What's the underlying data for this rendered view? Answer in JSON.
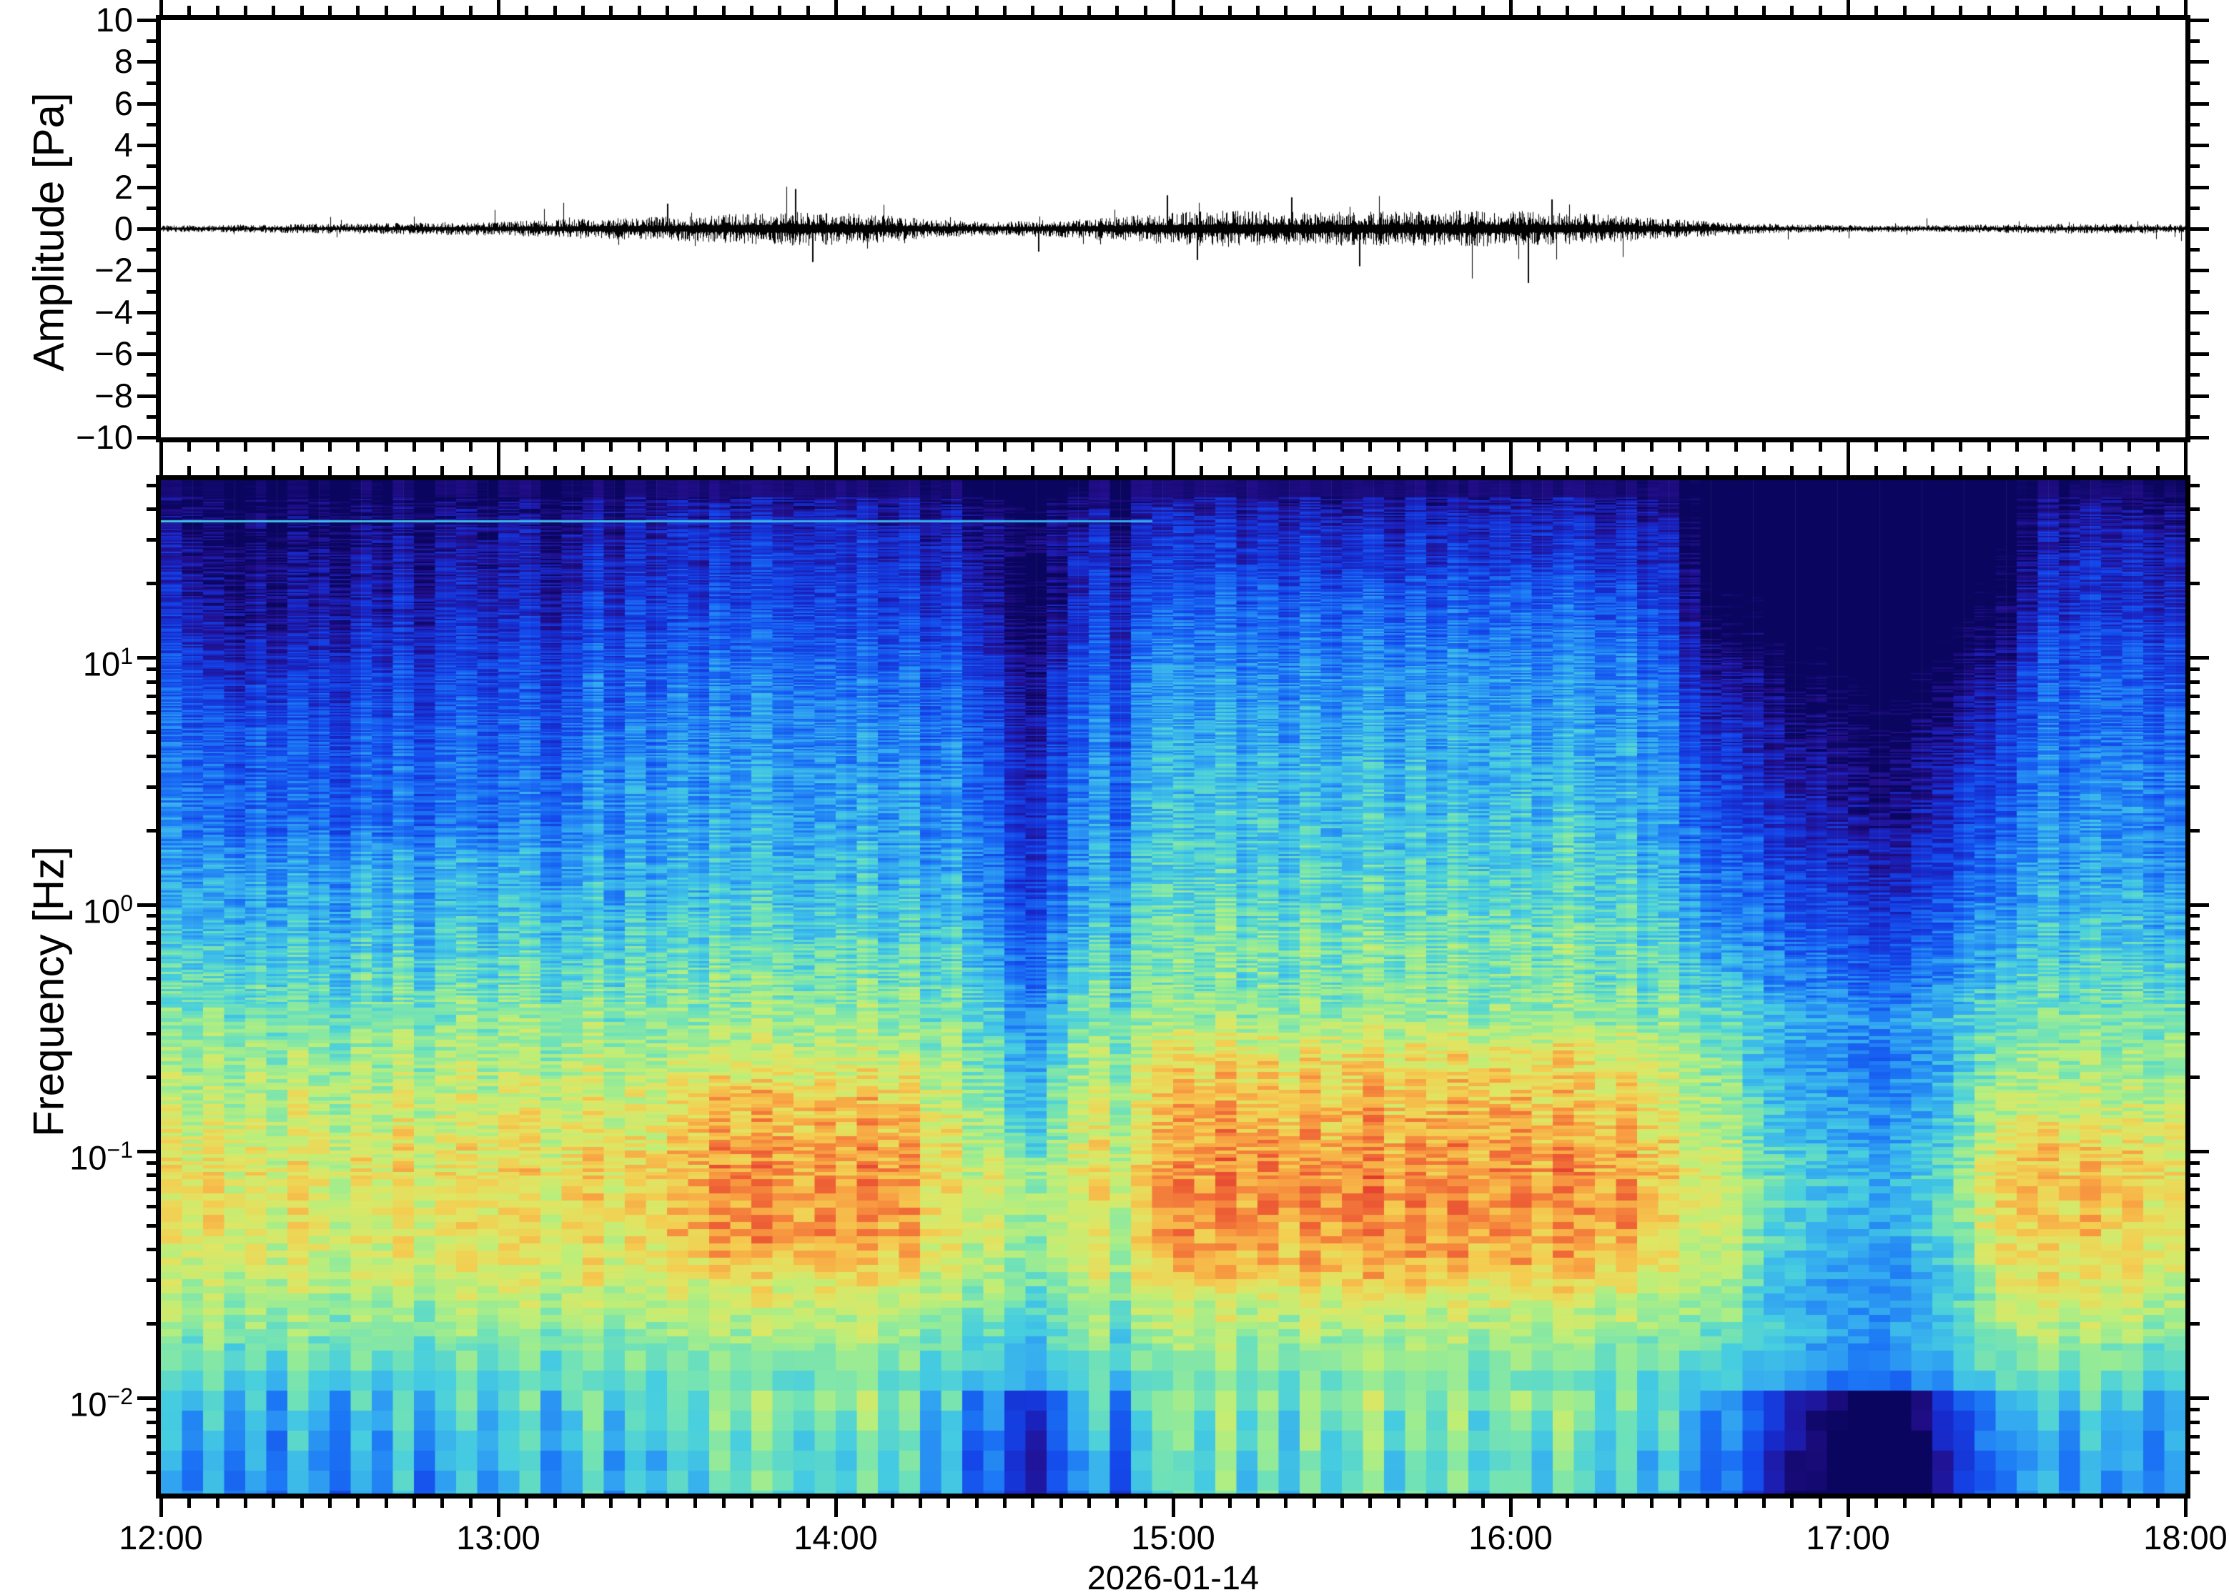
{
  "labels": {
    "amplitude_axis": "Amplitude [Pa]",
    "frequency_axis": "Frequency [Hz]",
    "date": "2026-01-14"
  },
  "chart_data": [
    {
      "type": "line",
      "title": "infrasound pressure waveform",
      "ylabel": "Amplitude [Pa]",
      "ylim": [
        -10,
        10
      ],
      "y_tick_step": 2,
      "y_minor_step": 1,
      "y_tick_labels": [
        "10",
        "8",
        "6",
        "4",
        "2",
        "0",
        "−2",
        "−4",
        "−6",
        "−8",
        "−10"
      ],
      "x_start": "12:00",
      "x_end": "18:00",
      "x_tick_labels": [
        "12:00",
        "13:00",
        "14:00",
        "15:00",
        "16:00",
        "17:00",
        "18:00"
      ],
      "x_minor_per_hour": 12,
      "line_color": "#000000",
      "envelope_pa": [
        [
          0.0,
          0.1
        ],
        [
          0.25,
          0.12
        ],
        [
          0.5,
          0.15
        ],
        [
          0.75,
          0.18
        ],
        [
          1.0,
          0.22
        ],
        [
          1.25,
          0.3
        ],
        [
          1.5,
          0.36
        ],
        [
          1.7,
          0.45
        ],
        [
          1.85,
          0.52
        ],
        [
          2.0,
          0.5
        ],
        [
          2.15,
          0.4
        ],
        [
          2.3,
          0.26
        ],
        [
          2.5,
          0.22
        ],
        [
          2.7,
          0.28
        ],
        [
          2.85,
          0.38
        ],
        [
          3.0,
          0.48
        ],
        [
          3.15,
          0.55
        ],
        [
          3.4,
          0.5
        ],
        [
          3.6,
          0.52
        ],
        [
          3.85,
          0.55
        ],
        [
          4.1,
          0.5
        ],
        [
          4.3,
          0.42
        ],
        [
          4.5,
          0.28
        ],
        [
          4.7,
          0.16
        ],
        [
          4.9,
          0.12
        ],
        [
          5.1,
          0.1
        ],
        [
          5.3,
          0.11
        ],
        [
          5.5,
          0.14
        ],
        [
          5.75,
          0.15
        ],
        [
          6.0,
          0.13
        ]
      ],
      "spikes_pa": [
        [
          1.5,
          1.2
        ],
        [
          1.88,
          1.9
        ],
        [
          1.93,
          -1.6
        ],
        [
          2.6,
          -1.1
        ],
        [
          2.98,
          1.6
        ],
        [
          3.07,
          -1.5
        ],
        [
          3.35,
          1.5
        ],
        [
          3.55,
          -1.8
        ],
        [
          4.05,
          -2.6
        ],
        [
          4.12,
          1.4
        ]
      ]
    },
    {
      "type": "heatmap",
      "title": "infrasound spectrogram",
      "ylabel": "Frequency [Hz]",
      "xlabel": "2026-01-14",
      "y_scale": "log",
      "f_min_hz": 0.0041,
      "f_max_hz": 52.3,
      "y_tick_exponents": [
        "1",
        "0",
        "−1",
        "−2"
      ],
      "y_minor_ticks_hz": [
        50,
        40,
        30,
        20,
        9,
        8,
        7,
        6,
        5,
        4,
        3,
        2,
        0.9,
        0.8,
        0.7,
        0.6,
        0.5,
        0.4,
        0.3,
        0.2,
        0.09,
        0.08,
        0.07,
        0.06,
        0.05,
        0.04,
        0.03,
        0.02,
        0.009,
        0.008,
        0.007,
        0.006,
        0.005
      ],
      "x_tick_labels": [
        "12:00",
        "13:00",
        "14:00",
        "15:00",
        "16:00",
        "17:00",
        "18:00"
      ],
      "x_minor_per_hour": 12,
      "time_columns": 96,
      "noise_seed": 20260114,
      "colormap_stops": [
        [
          0.0,
          "#0a0660"
        ],
        [
          0.07,
          "#220e8a"
        ],
        [
          0.15,
          "#1826c6"
        ],
        [
          0.25,
          "#1448eb"
        ],
        [
          0.35,
          "#1c78f5"
        ],
        [
          0.44,
          "#34aaf0"
        ],
        [
          0.52,
          "#46cde0"
        ],
        [
          0.58,
          "#6ee1b9"
        ],
        [
          0.64,
          "#96eb96"
        ],
        [
          0.7,
          "#beee78"
        ],
        [
          0.76,
          "#dee664"
        ],
        [
          0.82,
          "#f4cd50"
        ],
        [
          0.88,
          "#f8a042"
        ],
        [
          0.94,
          "#f06937"
        ],
        [
          1.0,
          "#e23a2d"
        ]
      ],
      "freq_profile_log10": [
        [
          -2.4,
          0.43
        ],
        [
          -2.2,
          0.45
        ],
        [
          -2.0,
          0.5
        ],
        [
          -1.85,
          0.56
        ],
        [
          -1.7,
          0.64
        ],
        [
          -1.5,
          0.72
        ],
        [
          -1.3,
          0.77
        ],
        [
          -1.1,
          0.78
        ],
        [
          -0.9,
          0.74
        ],
        [
          -0.6,
          0.66
        ],
        [
          -0.3,
          0.56
        ],
        [
          0.0,
          0.46
        ],
        [
          0.3,
          0.4
        ],
        [
          0.6,
          0.36
        ],
        [
          0.9,
          0.3
        ],
        [
          1.2,
          0.2
        ],
        [
          1.5,
          0.13
        ],
        [
          1.65,
          0.05
        ],
        [
          1.72,
          0.03
        ]
      ],
      "column_offsets": [
        0.01,
        -0.03,
        0.02,
        -0.04,
        0.0,
        -0.05,
        0.02,
        -0.02,
        -0.06,
        0.01,
        -0.03,
        0.03,
        -0.05,
        0.0,
        0.03,
        -0.02,
        0.02,
        0.04,
        -0.03,
        0.01,
        0.05,
        -0.02,
        0.03,
        0.0,
        0.04,
        0.01,
        0.06,
        0.03,
        0.07,
        0.04,
        0.02,
        0.05,
        0.03,
        0.07,
        0.02,
        0.05,
        -0.03,
        0.02,
        -0.07,
        -0.04,
        -0.11,
        -0.13,
        -0.07,
        -0.02,
        0.02,
        -0.08,
        0.02,
        0.05,
        0.06,
        0.03,
        0.08,
        0.02,
        0.06,
        0.01,
        0.07,
        0.03,
        0.05,
        0.08,
        0.02,
        0.06,
        0.03,
        0.07,
        0.02,
        0.05,
        0.06,
        0.02,
        0.07,
        0.04,
        0.01,
        0.05,
        0.0,
        0.03,
        -0.02,
        -0.05,
        -0.03,
        -0.08,
        -0.12,
        -0.15,
        -0.17,
        -0.19,
        -0.21,
        -0.23,
        -0.21,
        -0.17,
        -0.13,
        -0.09,
        -0.05,
        -0.03,
        -0.01,
        0.01,
        -0.03,
        0.02,
        -0.02,
        0.0,
        -0.04,
        -0.01
      ],
      "features": [
        {
          "name": "morning-high-freq-dark",
          "t0": 0.0,
          "t1": 1.3,
          "f0": 1.5,
          "f1": 55,
          "dv": -0.06,
          "freq_weighted": false
        },
        {
          "name": "morning-top-violet",
          "t0": 0.0,
          "t1": 0.5,
          "f0": 6,
          "f1": 45,
          "dv": -0.045,
          "freq_weighted": false
        },
        {
          "name": "afternoon-mid-bright",
          "t0": 2.8,
          "t1": 4.5,
          "f0": 0.5,
          "f1": 25,
          "dv": 0.055,
          "freq_weighted": false
        },
        {
          "name": "evening-quiet-high",
          "t0": 4.45,
          "t1": 5.6,
          "f0": 0.35,
          "f1": 55,
          "dv": -0.22,
          "freq_weighted": true
        },
        {
          "name": "evening-quiet-low",
          "t0": 4.6,
          "t1": 5.45,
          "f0": 0.02,
          "f1": 0.35,
          "dv": -0.1,
          "freq_weighted": false
        },
        {
          "name": "midafternoon-dip",
          "t0": 2.42,
          "t1": 2.72,
          "f0": 0.08,
          "f1": 30,
          "dv": -0.12,
          "freq_weighted": false
        },
        {
          "name": "orange-patch-early",
          "t0": 1.45,
          "t1": 2.35,
          "f0": 0.03,
          "f1": 0.25,
          "dv": 0.07,
          "freq_weighted": false
        },
        {
          "name": "orange-patch-late",
          "t0": 2.85,
          "t1": 4.5,
          "f0": 0.025,
          "f1": 0.35,
          "dv": 0.07,
          "freq_weighted": false
        },
        {
          "name": "late-low-warm",
          "t0": 5.3,
          "t1": 6.0,
          "f0": 0.01,
          "f1": 0.15,
          "dv": 0.05,
          "freq_weighted": false
        }
      ],
      "cyan_line": {
        "f_hz": 36,
        "t0": 0.0,
        "t1": 2.92,
        "value": 0.5,
        "fade": 0.06
      }
    }
  ]
}
